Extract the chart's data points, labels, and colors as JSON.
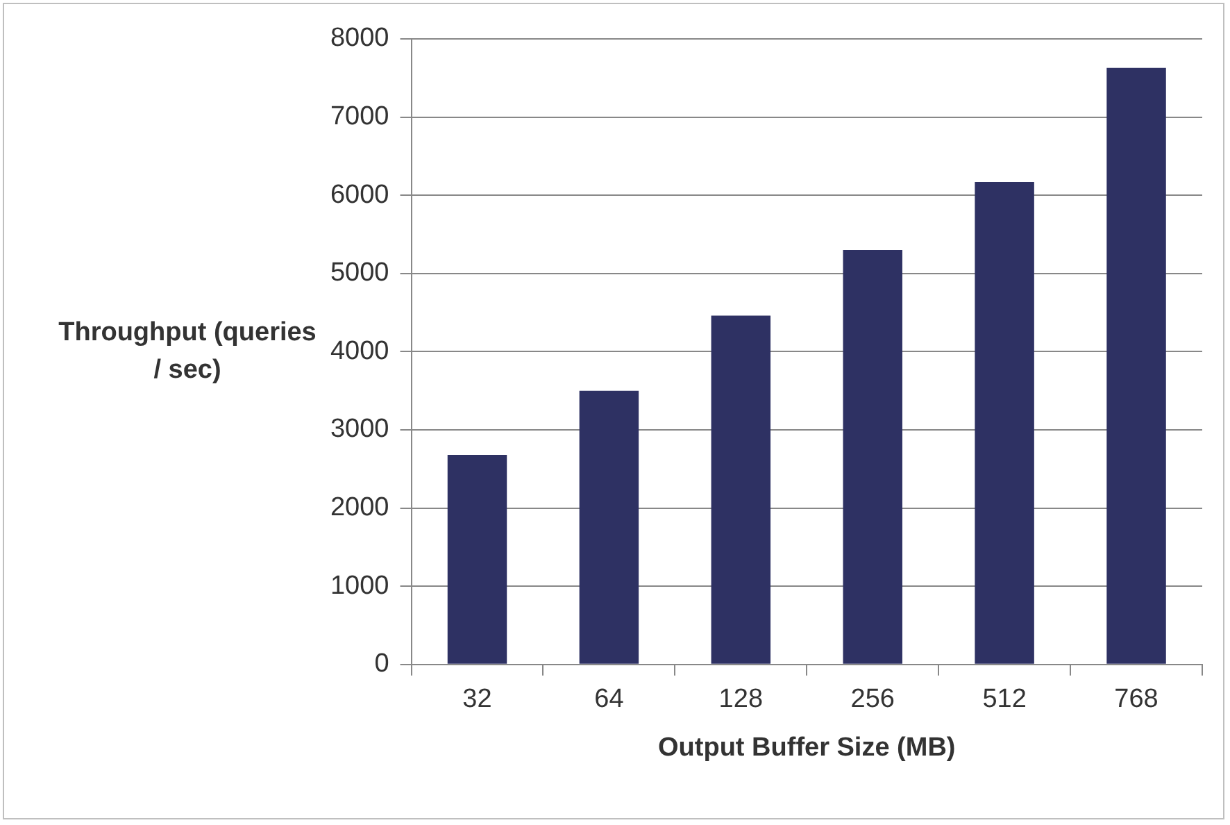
{
  "chart_data": {
    "type": "bar",
    "xlabel": "Output Buffer Size (MB)",
    "ylabel": "Throughput (queries / sec)",
    "categories": [
      "32",
      "64",
      "128",
      "256",
      "512",
      "768"
    ],
    "values": [
      2680,
      3500,
      4460,
      5300,
      6170,
      7630
    ],
    "color": "#2e3163",
    "ylim": [
      0,
      8000
    ],
    "yticks": [
      0,
      1000,
      2000,
      3000,
      4000,
      5000,
      6000,
      7000,
      8000
    ],
    "grid": "y",
    "legend": false
  }
}
